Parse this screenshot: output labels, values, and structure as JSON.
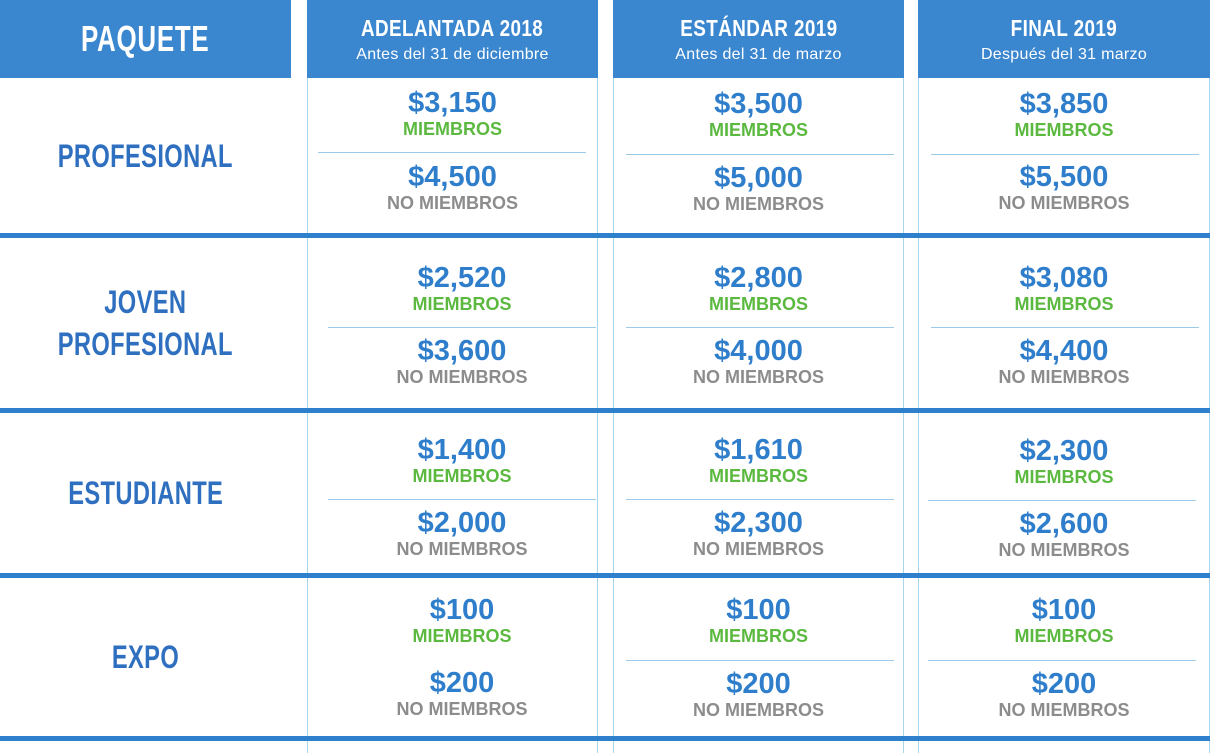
{
  "header": {
    "package_label": "PAQUETE",
    "tiers": [
      {
        "name": "ADELANTADA 2018",
        "deadline": "Antes del 31 de diciembre"
      },
      {
        "name": "ESTÁNDAR 2019",
        "deadline": "Antes del 31 de marzo"
      },
      {
        "name": "FINAL 2019",
        "deadline": "Después del 31 marzo"
      }
    ]
  },
  "labels": {
    "members": "MIEMBROS",
    "non_members": "NO MIEMBROS"
  },
  "rows": [
    {
      "package": "PROFESIONAL",
      "prices": [
        {
          "members": "$3,150",
          "non_members": "$4,500"
        },
        {
          "members": "$3,500",
          "non_members": "$5,000"
        },
        {
          "members": "$3,850",
          "non_members": "$5,500"
        }
      ]
    },
    {
      "package": "JOVEN\nPROFESIONAL",
      "prices": [
        {
          "members": "$2,520",
          "non_members": "$3,600"
        },
        {
          "members": "$2,800",
          "non_members": "$4,000"
        },
        {
          "members": "$3,080",
          "non_members": "$4,400"
        }
      ]
    },
    {
      "package": "ESTUDIANTE",
      "prices": [
        {
          "members": "$1,400",
          "non_members": "$2,000"
        },
        {
          "members": "$1,610",
          "non_members": "$2,300"
        },
        {
          "members": "$2,300",
          "non_members": "$2,600"
        }
      ]
    },
    {
      "package": "EXPO",
      "prices": [
        {
          "members": "$100",
          "non_members": "$200"
        },
        {
          "members": "$100",
          "non_members": "$200"
        },
        {
          "members": "$100",
          "non_members": "$200"
        }
      ]
    }
  ],
  "colors": {
    "header_bg": "#3a86cf",
    "price_blue": "#2f7ecb",
    "members_green": "#5cb940",
    "non_members_gray": "#8c8c8c",
    "separator_blue": "#2f80cc"
  }
}
